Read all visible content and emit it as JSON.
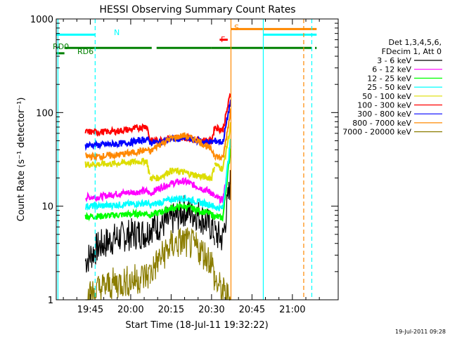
{
  "chart_data": {
    "type": "line",
    "title": "HESSI Observing Summary Count Rates",
    "xlabel": "Start Time (18-Jul-11 19:32:22)",
    "ylabel": "Count Rate (s⁻¹ detector⁻¹)",
    "y_scale": "log",
    "ylim": [
      1,
      1000
    ],
    "xlim": [
      "19:32:22",
      "21:17:00"
    ],
    "x_ticks": [
      "19:45",
      "20:00",
      "20:15",
      "20:30",
      "20:45",
      "21:00"
    ],
    "y_ticks": [
      {
        "value": 1,
        "label": "1"
      },
      {
        "value": 10,
        "label": "10"
      },
      {
        "value": 100,
        "label": "100"
      },
      {
        "value": 1000,
        "label": "1000"
      }
    ],
    "legend_position": "right",
    "legend_header": [
      "Det 1,3,4,5,6,",
      "FDecim 1, Att 0"
    ],
    "series": [
      {
        "name": "3 - 6 keV",
        "color": "#000000",
        "values": [
          [
            19.72,
            2.6
          ],
          [
            19.8,
            3.7
          ],
          [
            19.9,
            4.5
          ],
          [
            20.0,
            5.0
          ],
          [
            20.1,
            5.2
          ],
          [
            20.12,
            6.0
          ],
          [
            20.17,
            6.2
          ],
          [
            20.25,
            7.0
          ],
          [
            20.33,
            9.0
          ],
          [
            20.42,
            8.0
          ],
          [
            20.5,
            6.0
          ],
          [
            20.52,
            5.0
          ],
          [
            20.57,
            4.5
          ],
          [
            20.62,
            20
          ]
        ]
      },
      {
        "name": "6 - 12 keV",
        "color": "#ff00ff",
        "values": [
          [
            19.72,
            12.5
          ],
          [
            19.8,
            12.5
          ],
          [
            19.9,
            13.5
          ],
          [
            20.0,
            14.0
          ],
          [
            20.1,
            14.5
          ],
          [
            20.12,
            13.5
          ],
          [
            20.17,
            15.5
          ],
          [
            20.25,
            17.5
          ],
          [
            20.33,
            18.5
          ],
          [
            20.42,
            16.0
          ],
          [
            20.5,
            14.0
          ],
          [
            20.52,
            12.5
          ],
          [
            20.57,
            11.5
          ],
          [
            20.62,
            40
          ]
        ]
      },
      {
        "name": "12 - 25 keV",
        "color": "#00ff00",
        "values": [
          [
            19.72,
            7.8
          ],
          [
            19.8,
            7.8
          ],
          [
            19.9,
            8.0
          ],
          [
            20.0,
            8.2
          ],
          [
            20.1,
            8.4
          ],
          [
            20.12,
            8.0
          ],
          [
            20.17,
            8.5
          ],
          [
            20.25,
            9.5
          ],
          [
            20.33,
            10.0
          ],
          [
            20.42,
            9.0
          ],
          [
            20.5,
            8.2
          ],
          [
            20.52,
            7.7
          ],
          [
            20.57,
            7.5
          ],
          [
            20.62,
            45
          ]
        ]
      },
      {
        "name": "25 - 50 keV",
        "color": "#00ffff",
        "values": [
          [
            19.72,
            10.0
          ],
          [
            19.8,
            10.0
          ],
          [
            19.9,
            10.3
          ],
          [
            20.0,
            10.5
          ],
          [
            20.1,
            10.8
          ],
          [
            20.12,
            10.2
          ],
          [
            20.17,
            10.8
          ],
          [
            20.25,
            11.8
          ],
          [
            20.33,
            12.3
          ],
          [
            20.42,
            11.0
          ],
          [
            20.5,
            10.3
          ],
          [
            20.52,
            9.7
          ],
          [
            20.57,
            9.5
          ],
          [
            20.62,
            55
          ]
        ]
      },
      {
        "name": "50 - 100 keV",
        "color": "#dddd00",
        "values": [
          [
            19.72,
            28
          ],
          [
            19.8,
            28
          ],
          [
            19.9,
            28.5
          ],
          [
            20.0,
            29.5
          ],
          [
            20.1,
            30.5
          ],
          [
            20.12,
            20
          ],
          [
            20.17,
            20
          ],
          [
            20.25,
            24
          ],
          [
            20.33,
            23
          ],
          [
            20.42,
            21
          ],
          [
            20.5,
            20
          ],
          [
            20.52,
            28
          ],
          [
            20.57,
            25
          ],
          [
            20.62,
            75
          ]
        ]
      },
      {
        "name": "100 - 300 keV",
        "color": "#ff0000",
        "values": [
          [
            19.72,
            62
          ],
          [
            19.8,
            62
          ],
          [
            19.9,
            63
          ],
          [
            20.0,
            66
          ],
          [
            20.1,
            72
          ],
          [
            20.12,
            50
          ],
          [
            20.17,
            50
          ],
          [
            20.25,
            54
          ],
          [
            20.33,
            54
          ],
          [
            20.42,
            51
          ],
          [
            20.5,
            50
          ],
          [
            20.52,
            70
          ],
          [
            20.57,
            65
          ],
          [
            20.62,
            170
          ]
        ]
      },
      {
        "name": "300 - 800 keV",
        "color": "#0000ff",
        "values": [
          [
            19.72,
            45
          ],
          [
            19.8,
            45
          ],
          [
            19.9,
            46
          ],
          [
            20.0,
            48
          ],
          [
            20.1,
            52
          ],
          [
            20.12,
            48
          ],
          [
            20.17,
            48
          ],
          [
            20.25,
            52
          ],
          [
            20.33,
            53
          ],
          [
            20.42,
            50
          ],
          [
            20.5,
            48
          ],
          [
            20.52,
            50
          ],
          [
            20.57,
            48
          ],
          [
            20.62,
            140
          ]
        ]
      },
      {
        "name": "800 - 7000 keV",
        "color": "#ff8800",
        "values": [
          [
            19.72,
            34
          ],
          [
            19.8,
            34
          ],
          [
            19.9,
            35
          ],
          [
            20.0,
            37
          ],
          [
            20.1,
            40
          ],
          [
            20.12,
            38
          ],
          [
            20.17,
            45
          ],
          [
            20.25,
            53
          ],
          [
            20.33,
            57
          ],
          [
            20.42,
            50
          ],
          [
            20.5,
            40
          ],
          [
            20.52,
            35
          ],
          [
            20.57,
            32
          ],
          [
            20.62,
            110
          ]
        ]
      },
      {
        "name": "7000 - 20000 keV",
        "color": "#8b7d00",
        "values": [
          [
            19.72,
            1.0
          ],
          [
            19.8,
            1.3
          ],
          [
            19.9,
            1.5
          ],
          [
            20.0,
            1.6
          ],
          [
            20.1,
            1.8
          ],
          [
            20.12,
            1.9
          ],
          [
            20.17,
            2.6
          ],
          [
            20.25,
            3.8
          ],
          [
            20.33,
            4.2
          ],
          [
            20.42,
            3.5
          ],
          [
            20.5,
            2.6
          ],
          [
            20.52,
            1.6
          ],
          [
            20.57,
            1.2
          ],
          [
            20.62,
            1.0
          ]
        ]
      }
    ],
    "state_bars": [
      {
        "label": "N",
        "color": "#00ffff",
        "segments": [
          [
            19.54,
            19.78
          ],
          [
            20.82,
            21.15
          ]
        ]
      },
      {
        "label": "S",
        "color": "#ff8800",
        "segments": [
          [
            20.62,
            21.15
          ]
        ]
      },
      {
        "label": "F",
        "color": "#ff0000",
        "segments": [
          [
            20.55,
            20.6
          ]
        ]
      },
      {
        "label": "RD0",
        "color": "#008000",
        "segments": [
          [
            19.59,
            20.13
          ],
          [
            20.16,
            20.5
          ],
          [
            20.5,
            21.12
          ],
          [
            21.14,
            21.15
          ]
        ]
      },
      {
        "label": "RD6",
        "color": "#008000",
        "segments": [
          [
            19.54,
            19.59
          ]
        ]
      }
    ],
    "vertical_markers": [
      {
        "time": 19.55,
        "color": "#00ffff",
        "style": "solid"
      },
      {
        "time": 19.78,
        "color": "#00ffff",
        "style": "dashed"
      },
      {
        "time": 20.62,
        "color": "#ff8800",
        "style": "solid"
      },
      {
        "time": 20.82,
        "color": "#00ffff",
        "style": "solid"
      },
      {
        "time": 21.07,
        "color": "#ff8800",
        "style": "dashed"
      },
      {
        "time": 21.12,
        "color": "#00ffff",
        "style": "dashed"
      }
    ],
    "footer_timestamp": "19-Jul-2011 09:28"
  }
}
